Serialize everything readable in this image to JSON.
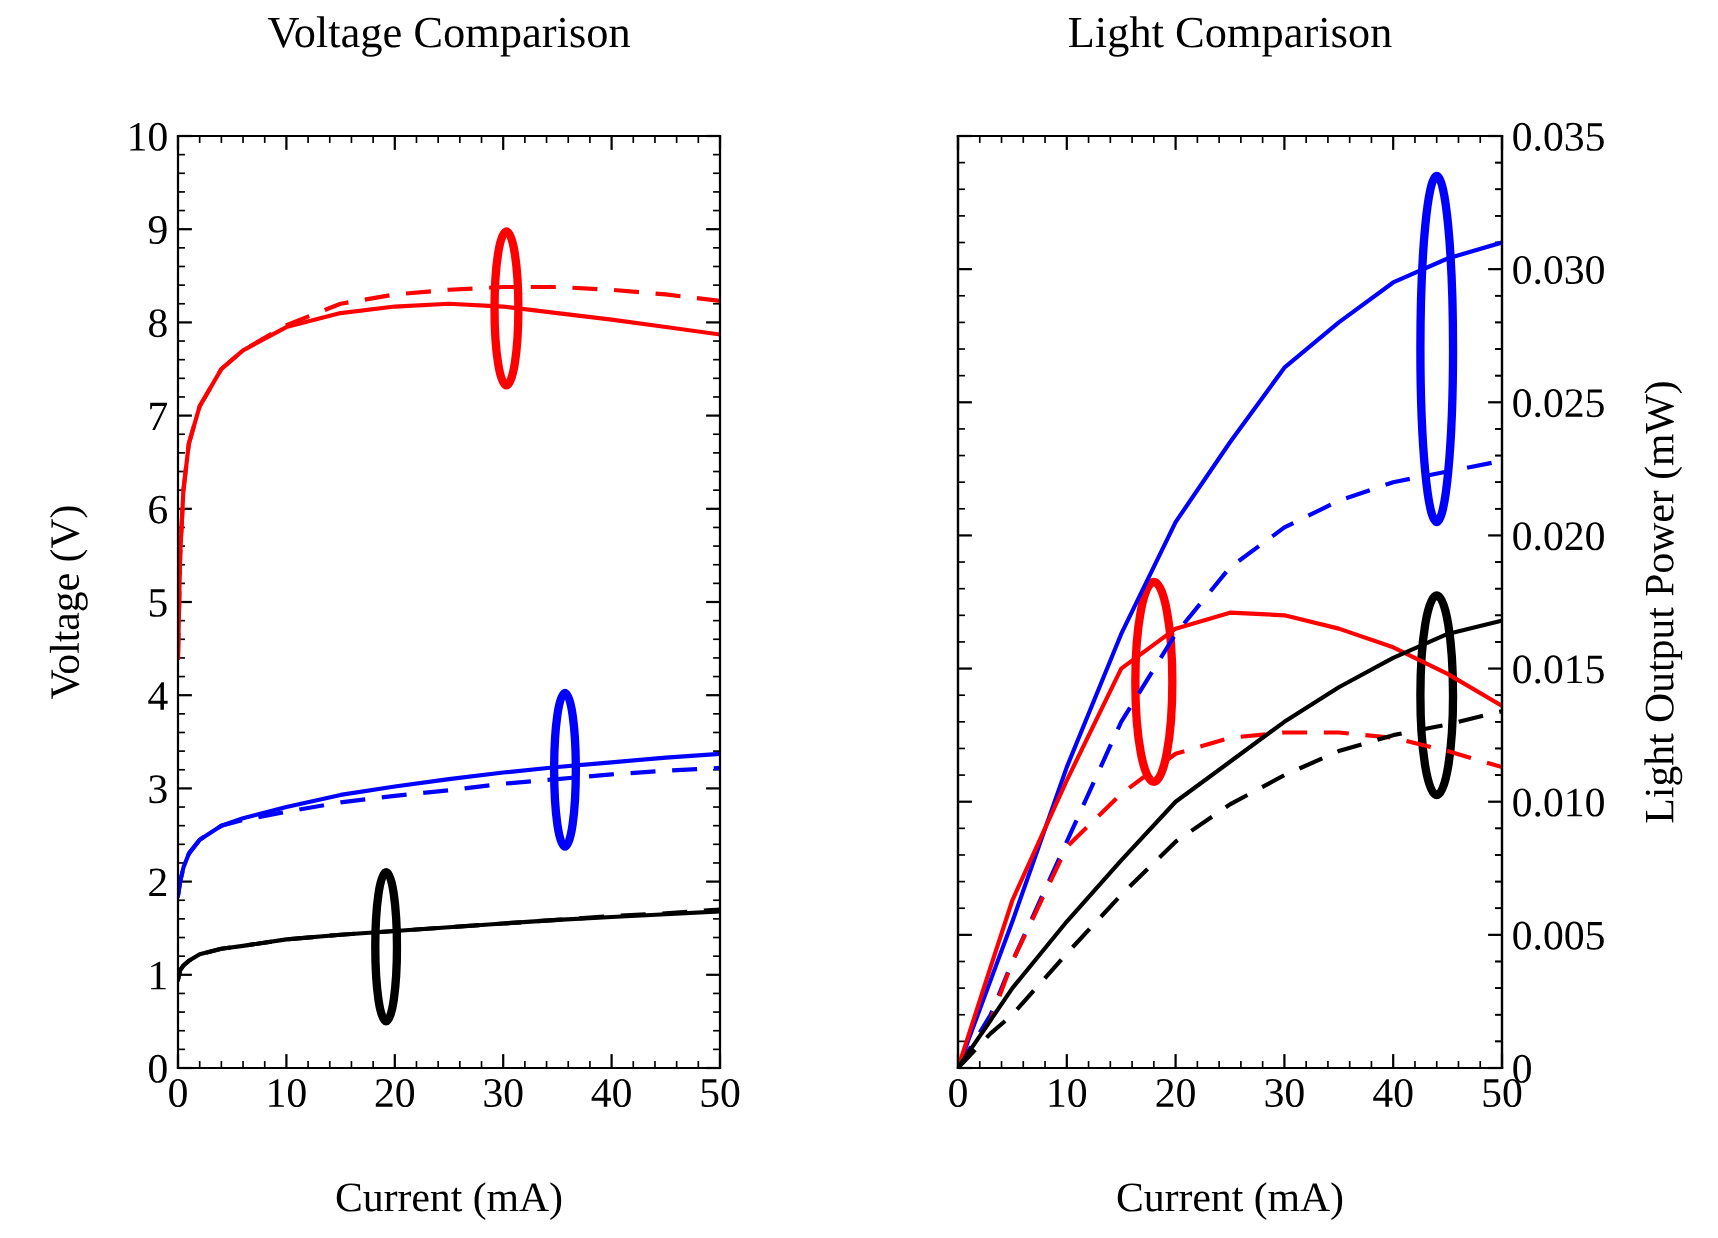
{
  "chart_data": [
    {
      "type": "line",
      "title": "Voltage Comparison",
      "xlabel": "Current (mA)",
      "ylabel": "Voltage (V)",
      "xlim": [
        0,
        50
      ],
      "ylim": [
        0,
        10
      ],
      "xticks": [
        0,
        10,
        20,
        30,
        40,
        50
      ],
      "yticks": [
        0,
        1,
        2,
        3,
        4,
        5,
        6,
        7,
        8,
        9,
        10
      ],
      "grid": false,
      "legend": false,
      "x": [
        0,
        0.2,
        0.5,
        1,
        2,
        4,
        6,
        10,
        15,
        20,
        25,
        30,
        35,
        40,
        45,
        50
      ],
      "series": [
        {
          "color": "#ff0000",
          "line_style": "solid",
          "values": [
            4.4,
            5.5,
            6.2,
            6.7,
            7.1,
            7.5,
            7.7,
            7.95,
            8.1,
            8.17,
            8.2,
            8.17,
            8.1,
            8.03,
            7.95,
            7.87
          ]
        },
        {
          "color": "#ff0000",
          "line_style": "dashed",
          "values": [
            4.4,
            5.5,
            6.2,
            6.7,
            7.1,
            7.5,
            7.7,
            7.97,
            8.2,
            8.3,
            8.35,
            8.38,
            8.38,
            8.35,
            8.3,
            8.23
          ]
        },
        {
          "color": "#0000ff",
          "line_style": "solid",
          "values": [
            1.85,
            2.0,
            2.15,
            2.3,
            2.45,
            2.6,
            2.68,
            2.8,
            2.93,
            3.02,
            3.1,
            3.17,
            3.23,
            3.28,
            3.33,
            3.37
          ]
        },
        {
          "color": "#0000ff",
          "line_style": "dashed",
          "values": [
            1.85,
            2.0,
            2.15,
            2.3,
            2.45,
            2.6,
            2.66,
            2.75,
            2.85,
            2.92,
            2.98,
            3.05,
            3.1,
            3.15,
            3.19,
            3.22
          ]
        },
        {
          "color": "#000000",
          "line_style": "solid",
          "values": [
            0.95,
            1.05,
            1.1,
            1.15,
            1.22,
            1.28,
            1.31,
            1.38,
            1.43,
            1.47,
            1.51,
            1.55,
            1.59,
            1.62,
            1.65,
            1.68
          ]
        },
        {
          "color": "#000000",
          "line_style": "dashed",
          "values": [
            0.95,
            1.05,
            1.1,
            1.15,
            1.22,
            1.28,
            1.31,
            1.38,
            1.43,
            1.47,
            1.51,
            1.55,
            1.59,
            1.63,
            1.66,
            1.7
          ]
        }
      ]
    },
    {
      "type": "line",
      "title": "Light Comparison",
      "xlabel": "Current (mA)",
      "y2label": "Light Output Power (mW)",
      "xlim": [
        0,
        50
      ],
      "y2lim": [
        0,
        0.035
      ],
      "xticks": [
        0,
        10,
        20,
        30,
        40,
        50
      ],
      "y2ticks": [
        0,
        0.005,
        {
          "value": 0.01,
          "label": "0.010"
        },
        0.015,
        {
          "value": 0.02,
          "label": "0.020"
        },
        0.025,
        {
          "value": 0.03,
          "label": "0.030"
        },
        0.035
      ],
      "grid": false,
      "legend": false,
      "x": [
        0,
        3,
        5,
        10,
        15,
        20,
        25,
        30,
        35,
        40,
        45,
        50
      ],
      "series": [
        {
          "axis": "y2",
          "color": "#0000ff",
          "line_style": "solid",
          "values": [
            0,
            0.0033,
            0.0055,
            0.0113,
            0.0163,
            0.0205,
            0.0235,
            0.0263,
            0.028,
            0.0295,
            0.0304,
            0.031
          ]
        },
        {
          "axis": "y2",
          "color": "#0000ff",
          "line_style": "dashed",
          "values": [
            0,
            0.002,
            0.004,
            0.0085,
            0.013,
            0.0163,
            0.0188,
            0.0203,
            0.0213,
            0.022,
            0.0224,
            0.0228
          ]
        },
        {
          "axis": "y2",
          "color": "#ff0000",
          "line_style": "solid",
          "values": [
            0,
            0.0038,
            0.0063,
            0.0108,
            0.015,
            0.0165,
            0.0171,
            0.017,
            0.0165,
            0.0158,
            0.0148,
            0.0136
          ]
        },
        {
          "axis": "y2",
          "color": "#ff0000",
          "line_style": "dashed",
          "values": [
            0,
            0.0018,
            0.004,
            0.0083,
            0.0103,
            0.0118,
            0.0124,
            0.0126,
            0.0126,
            0.0124,
            0.0119,
            0.0113
          ]
        },
        {
          "axis": "y2",
          "color": "#000000",
          "line_style": "solid",
          "values": [
            0,
            0.0018,
            0.003,
            0.0055,
            0.0078,
            0.01,
            0.0115,
            0.013,
            0.0143,
            0.0154,
            0.0163,
            0.0168
          ]
        },
        {
          "axis": "y2",
          "color": "#000000",
          "line_style": "dashed",
          "values": [
            0,
            0.0013,
            0.002,
            0.0043,
            0.0065,
            0.0085,
            0.0099,
            0.011,
            0.0119,
            0.0125,
            0.0129,
            0.0134
          ]
        }
      ]
    }
  ]
}
